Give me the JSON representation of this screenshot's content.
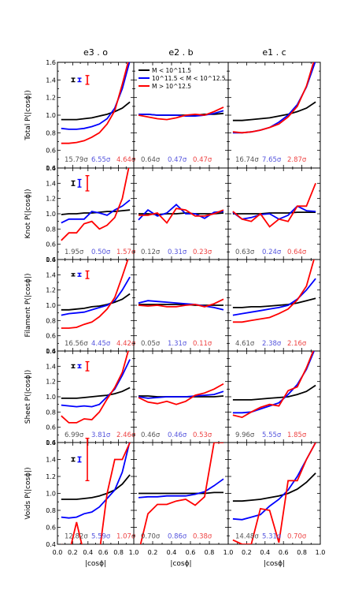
{
  "figure": {
    "column_titles": [
      "e3 . o",
      "e2 . b",
      "e1 . c"
    ],
    "row_ylabels": [
      "Total P(|cosϕ|)",
      "Knot P(|cosϕ|)",
      "Filament P(|cosϕ|)",
      "Sheet P(|cosϕ|)",
      "Voids P(|cosϕ|)"
    ],
    "xlabel": "|cosϕ|",
    "x_ticks": [
      "0.0",
      "0.2",
      "0.4",
      "0.6",
      "0.8",
      "1.0"
    ],
    "y_ticks": [
      "0.4",
      "0.6",
      "0.8",
      "1.0",
      "1.2",
      "1.4",
      "1.6"
    ],
    "legend": [
      {
        "label": "M < 10^11.5",
        "color": "#000000"
      },
      {
        "label": "10^11.5 < M < 10^12.5",
        "color": "#0000ff"
      },
      {
        "label": "M > 10^12.5",
        "color": "#ff0000"
      }
    ],
    "colors": {
      "low": "#000000",
      "mid": "#0000ff",
      "high": "#ff0000",
      "mid_text": "#5555dd",
      "high_text": "#ee4444",
      "low_text": "#555555"
    }
  },
  "chart_data": {
    "type": "line",
    "xlim": [
      0.0,
      1.0
    ],
    "ylim": [
      0.4,
      1.6
    ],
    "x": [
      0.05,
      0.15,
      0.25,
      0.35,
      0.45,
      0.55,
      0.65,
      0.75,
      0.85,
      0.95
    ],
    "panels": [
      {
        "row": 0,
        "col": 0,
        "sigmas": [
          "15.79σ",
          "6.55σ",
          "4.64σ"
        ],
        "errorbars": [
          0.02,
          0.02,
          0.05
        ],
        "series": [
          [
            0.95,
            0.95,
            0.95,
            0.96,
            0.97,
            0.99,
            1.01,
            1.04,
            1.08,
            1.15
          ],
          [
            0.85,
            0.84,
            0.84,
            0.85,
            0.87,
            0.9,
            0.96,
            1.08,
            1.3,
            1.62
          ],
          [
            0.68,
            0.68,
            0.69,
            0.71,
            0.75,
            0.8,
            0.9,
            1.05,
            1.35,
            1.68
          ]
        ]
      },
      {
        "row": 0,
        "col": 1,
        "sigmas": [
          "0.64σ",
          "0.47σ",
          "0.47σ"
        ],
        "errorbars": null,
        "series": [
          [
            1.01,
            1.01,
            1.0,
            1.0,
            1.0,
            1.0,
            1.0,
            1.01,
            1.01,
            1.02
          ],
          [
            1.01,
            1.01,
            1.0,
            1.0,
            1.0,
            0.99,
            0.99,
            1.0,
            1.02,
            1.05
          ],
          [
            1.0,
            0.98,
            0.96,
            0.95,
            0.97,
            1.0,
            1.01,
            1.0,
            1.04,
            1.09
          ]
        ]
      },
      {
        "row": 0,
        "col": 2,
        "sigmas": [
          "16.74σ",
          "7.65σ",
          "2.87σ"
        ],
        "errorbars": null,
        "series": [
          [
            0.94,
            0.94,
            0.95,
            0.96,
            0.97,
            0.99,
            1.01,
            1.04,
            1.08,
            1.15
          ],
          [
            0.8,
            0.8,
            0.81,
            0.83,
            0.86,
            0.92,
            1.0,
            1.12,
            1.32,
            1.62
          ],
          [
            0.81,
            0.8,
            0.81,
            0.83,
            0.86,
            0.9,
            0.98,
            1.1,
            1.33,
            1.68
          ]
        ]
      },
      {
        "row": 1,
        "col": 0,
        "sigmas": [
          "1.95σ",
          "0.50σ",
          "1.57σ"
        ],
        "errorbars": [
          0.03,
          0.05,
          0.1
        ],
        "series": [
          [
            0.99,
            1.0,
            1.0,
            1.01,
            1.01,
            1.02,
            1.03,
            1.03,
            1.04,
            1.05
          ],
          [
            0.88,
            0.93,
            0.93,
            0.93,
            1.03,
            1.01,
            0.98,
            1.05,
            1.1,
            1.18
          ],
          [
            0.65,
            0.75,
            0.75,
            0.87,
            0.9,
            0.8,
            0.85,
            0.95,
            1.2,
            1.68
          ]
        ]
      },
      {
        "row": 1,
        "col": 1,
        "sigmas": [
          "0.12σ",
          "0.31σ",
          "0.23σ"
        ],
        "errorbars": null,
        "series": [
          [
            1.0,
            1.0,
            0.99,
            1.0,
            1.0,
            1.01,
            1.0,
            1.0,
            1.0,
            1.01
          ],
          [
            0.92,
            1.05,
            0.97,
            1.01,
            1.12,
            1.0,
            1.0,
            0.94,
            1.02,
            1.03
          ],
          [
            0.98,
            0.98,
            1.01,
            0.88,
            1.07,
            1.05,
            0.97,
            0.97,
            1.0,
            1.05
          ]
        ]
      },
      {
        "row": 1,
        "col": 2,
        "sigmas": [
          "0.63σ",
          "0.24σ",
          "0.64σ"
        ],
        "errorbars": null,
        "series": [
          [
            1.0,
            1.0,
            1.0,
            1.0,
            1.01,
            1.01,
            1.01,
            1.02,
            1.02,
            1.02
          ],
          [
            1.02,
            0.93,
            0.95,
            0.99,
            1.0,
            0.93,
            0.98,
            1.1,
            1.04,
            1.03
          ],
          [
            1.03,
            0.93,
            0.9,
            1.0,
            0.83,
            0.93,
            0.9,
            1.1,
            1.1,
            1.4
          ]
        ]
      },
      {
        "row": 2,
        "col": 0,
        "sigmas": [
          "16.56σ",
          "4.45σ",
          "4.42σ"
        ],
        "errorbars": [
          0.01,
          0.02,
          0.05
        ],
        "series": [
          [
            0.94,
            0.94,
            0.95,
            0.96,
            0.98,
            0.99,
            1.01,
            1.04,
            1.08,
            1.15
          ],
          [
            0.87,
            0.89,
            0.9,
            0.91,
            0.94,
            0.97,
            1.0,
            1.06,
            1.2,
            1.37
          ],
          [
            0.7,
            0.7,
            0.71,
            0.75,
            0.78,
            0.85,
            0.95,
            1.1,
            1.38,
            1.68
          ]
        ]
      },
      {
        "row": 2,
        "col": 1,
        "sigmas": [
          "0.05σ",
          "1.31σ",
          "0.11σ"
        ],
        "errorbars": null,
        "series": [
          [
            1.01,
            1.01,
            1.01,
            1.01,
            1.01,
            1.01,
            1.0,
            1.0,
            1.0,
            1.0
          ],
          [
            1.03,
            1.06,
            1.05,
            1.04,
            1.03,
            1.02,
            1.01,
            0.99,
            0.97,
            0.94
          ],
          [
            1.0,
            0.99,
            1.0,
            0.98,
            0.98,
            1.0,
            1.01,
            0.98,
            1.02,
            1.08
          ]
        ]
      },
      {
        "row": 2,
        "col": 2,
        "sigmas": [
          "4.61σ",
          "2.38σ",
          "2.16σ"
        ],
        "errorbars": null,
        "series": [
          [
            0.97,
            0.97,
            0.98,
            0.98,
            0.99,
            1.0,
            1.01,
            1.03,
            1.06,
            1.09
          ],
          [
            0.87,
            0.89,
            0.91,
            0.93,
            0.95,
            0.97,
            1.0,
            1.08,
            1.2,
            1.35
          ],
          [
            0.78,
            0.78,
            0.8,
            0.82,
            0.84,
            0.89,
            0.95,
            1.07,
            1.25,
            1.68
          ]
        ]
      },
      {
        "row": 3,
        "col": 0,
        "sigmas": [
          "6.99σ",
          "3.81σ",
          "2.46σ"
        ],
        "errorbars": [
          0.02,
          0.02,
          0.06
        ],
        "series": [
          [
            0.98,
            0.98,
            0.98,
            0.99,
            1.0,
            1.01,
            1.02,
            1.04,
            1.07,
            1.12
          ],
          [
            0.89,
            0.88,
            0.87,
            0.88,
            0.87,
            0.9,
            1.0,
            1.1,
            1.28,
            1.49
          ],
          [
            0.75,
            0.66,
            0.66,
            0.71,
            0.7,
            0.8,
            0.97,
            1.12,
            1.32,
            1.68
          ]
        ]
      },
      {
        "row": 3,
        "col": 1,
        "sigmas": [
          "0.46σ",
          "0.46σ",
          "0.53σ"
        ],
        "errorbars": null,
        "series": [
          [
            1.01,
            1.01,
            1.0,
            1.0,
            1.0,
            1.0,
            1.0,
            1.0,
            1.0,
            1.01
          ],
          [
            1.0,
            0.98,
            0.99,
            1.0,
            1.0,
            1.0,
            1.01,
            1.02,
            1.03,
            1.07
          ],
          [
            0.99,
            0.93,
            0.91,
            0.94,
            0.9,
            0.94,
            1.02,
            1.05,
            1.1,
            1.17
          ]
        ]
      },
      {
        "row": 3,
        "col": 2,
        "sigmas": [
          "9.96σ",
          "5.55σ",
          "1.85σ"
        ],
        "errorbars": null,
        "series": [
          [
            0.96,
            0.96,
            0.96,
            0.97,
            0.98,
            0.99,
            1.0,
            1.03,
            1.07,
            1.15
          ],
          [
            0.79,
            0.79,
            0.8,
            0.84,
            0.88,
            0.92,
            1.03,
            1.16,
            1.36,
            1.65
          ],
          [
            0.76,
            0.73,
            0.8,
            0.86,
            0.9,
            0.88,
            1.08,
            1.13,
            1.38,
            1.68
          ]
        ]
      },
      {
        "row": 4,
        "col": 0,
        "sigmas": [
          "12.82σ",
          "5.59σ",
          "1.07σ"
        ],
        "errorbars": [
          0.02,
          0.03,
          0.25
        ],
        "series": [
          [
            0.93,
            0.93,
            0.93,
            0.94,
            0.95,
            0.97,
            1.0,
            1.04,
            1.11,
            1.22
          ],
          [
            0.72,
            0.71,
            0.72,
            0.76,
            0.78,
            0.84,
            0.94,
            1.04,
            1.25,
            1.62
          ],
          [
            0.4,
            0.28,
            0.66,
            0.28,
            0.35,
            0.3,
            1.0,
            1.4,
            1.4,
            1.6
          ]
        ]
      },
      {
        "row": 4,
        "col": 1,
        "sigmas": [
          "0.70σ",
          "0.86σ",
          "0.38σ"
        ],
        "errorbars": null,
        "series": [
          [
            1.0,
            1.0,
            1.0,
            1.0,
            1.0,
            1.0,
            1.0,
            1.0,
            1.01,
            1.01
          ],
          [
            0.95,
            0.96,
            0.96,
            0.97,
            0.97,
            0.97,
            0.99,
            1.02,
            1.09,
            1.17
          ],
          [
            0.3,
            0.76,
            0.87,
            0.87,
            0.91,
            0.93,
            0.86,
            0.96,
            1.6,
            1.6
          ]
        ]
      },
      {
        "row": 4,
        "col": 2,
        "sigmas": [
          "14.48σ",
          "5.31σ",
          "0.70σ"
        ],
        "errorbars": null,
        "series": [
          [
            0.91,
            0.91,
            0.92,
            0.93,
            0.95,
            0.97,
            1.0,
            1.05,
            1.13,
            1.24
          ],
          [
            0.7,
            0.69,
            0.72,
            0.75,
            0.85,
            0.93,
            1.04,
            1.2,
            1.4,
            1.6
          ],
          [
            0.45,
            0.4,
            0.4,
            0.82,
            0.8,
            0.42,
            1.15,
            1.15,
            1.4,
            1.6
          ]
        ]
      }
    ]
  }
}
